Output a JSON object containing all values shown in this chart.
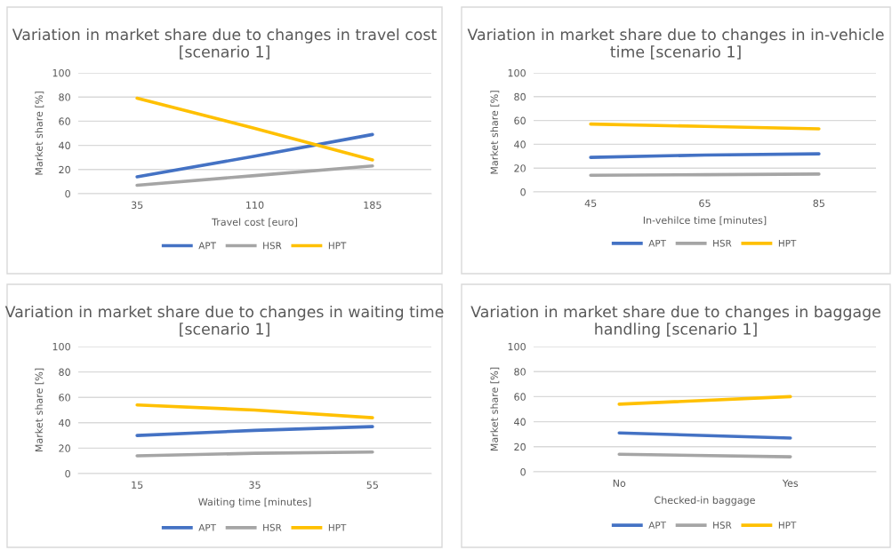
{
  "chart_data": [
    {
      "type": "line",
      "title": "Variation in market share due to changes in travel cost [scenario 1]",
      "xlabel": "Travel cost [euro]",
      "ylabel": "Market share [%]",
      "categories": [
        "35",
        "110",
        "185"
      ],
      "series": [
        {
          "name": "APT",
          "color": "#4472c4",
          "values": [
            14,
            31,
            49
          ]
        },
        {
          "name": "HSR",
          "color": "#a5a5a5",
          "values": [
            7,
            15,
            23
          ]
        },
        {
          "name": "HPT",
          "color": "#ffc000",
          "values": [
            79,
            54,
            28
          ]
        }
      ],
      "ylim": [
        0,
        100
      ],
      "yticks": [
        0,
        20,
        40,
        60,
        80,
        100
      ],
      "grid": "y",
      "legend": "bottom"
    },
    {
      "type": "line",
      "title": "Variation in market share due to changes in in-vehicle time [scenario 1]",
      "xlabel": "In-vehilce time [minutes]",
      "ylabel": "Market share [%]",
      "categories": [
        "45",
        "65",
        "85"
      ],
      "series": [
        {
          "name": "APT",
          "color": "#4472c4",
          "values": [
            29,
            31,
            32
          ]
        },
        {
          "name": "HSR",
          "color": "#a5a5a5",
          "values": [
            14,
            14.5,
            15
          ]
        },
        {
          "name": "HPT",
          "color": "#ffc000",
          "values": [
            57,
            55,
            53
          ]
        }
      ],
      "ylim": [
        0,
        100
      ],
      "yticks": [
        0,
        20,
        40,
        60,
        80,
        100
      ],
      "grid": "y",
      "legend": "bottom"
    },
    {
      "type": "line",
      "title": "Variation in market share due to changes in waiting time [scenario 1]",
      "xlabel": "Waiting time [minutes]",
      "ylabel": "Market share [%]",
      "categories": [
        "15",
        "35",
        "55"
      ],
      "series": [
        {
          "name": "APT",
          "color": "#4472c4",
          "values": [
            30,
            34,
            37
          ]
        },
        {
          "name": "HSR",
          "color": "#a5a5a5",
          "values": [
            14,
            16,
            17
          ]
        },
        {
          "name": "HPT",
          "color": "#ffc000",
          "values": [
            54,
            50,
            44
          ]
        }
      ],
      "ylim": [
        0,
        100
      ],
      "yticks": [
        0,
        20,
        40,
        60,
        80,
        100
      ],
      "grid": "y",
      "legend": "bottom"
    },
    {
      "type": "line",
      "title": "Variation in market share due to changes in baggage handling [scenario 1]",
      "xlabel": "Checked-in baggage",
      "ylabel": "Market share [%]",
      "categories": [
        "No",
        "Yes"
      ],
      "series": [
        {
          "name": "APT",
          "color": "#4472c4",
          "values": [
            31,
            27
          ]
        },
        {
          "name": "HSR",
          "color": "#a5a5a5",
          "values": [
            14,
            12
          ]
        },
        {
          "name": "HPT",
          "color": "#ffc000",
          "values": [
            54,
            60
          ]
        }
      ],
      "ylim": [
        0,
        100
      ],
      "yticks": [
        0,
        20,
        40,
        60,
        80,
        100
      ],
      "grid": "y",
      "legend": "bottom"
    }
  ]
}
